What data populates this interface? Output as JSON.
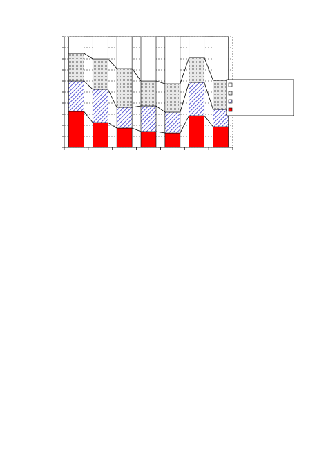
{
  "chart_data": {
    "type": "stacked_bar",
    "categories": [
      null,
      null,
      null,
      null,
      null,
      null,
      null
    ],
    "series": [
      {
        "color": "#ff0000",
        "pattern": "solid",
        "values": [
          32.5,
          22.5,
          17.5,
          14.4,
          13.1,
          28.75,
          18.75
        ]
      },
      {
        "color": "#3333cc",
        "pattern": "hatch",
        "values": [
          27.5,
          30,
          18.75,
          23.1,
          18.8,
          30,
          15.6
        ]
      },
      {
        "color": "#b0b0b0",
        "pattern": "dots",
        "values": [
          25,
          27.5,
          35,
          22.5,
          25.6,
          22.5,
          26.3
        ]
      },
      {
        "color": "#ffffff",
        "pattern": "solid",
        "values": [
          15,
          20,
          28.75,
          40,
          42.5,
          18.75,
          39.4
        ]
      }
    ],
    "ylim": [
      0,
      100
    ],
    "yticks": [
      0,
      10,
      20,
      30,
      40,
      50,
      60,
      70,
      80,
      90,
      100
    ],
    "grid": true,
    "series_lines": true,
    "legend": "right"
  }
}
